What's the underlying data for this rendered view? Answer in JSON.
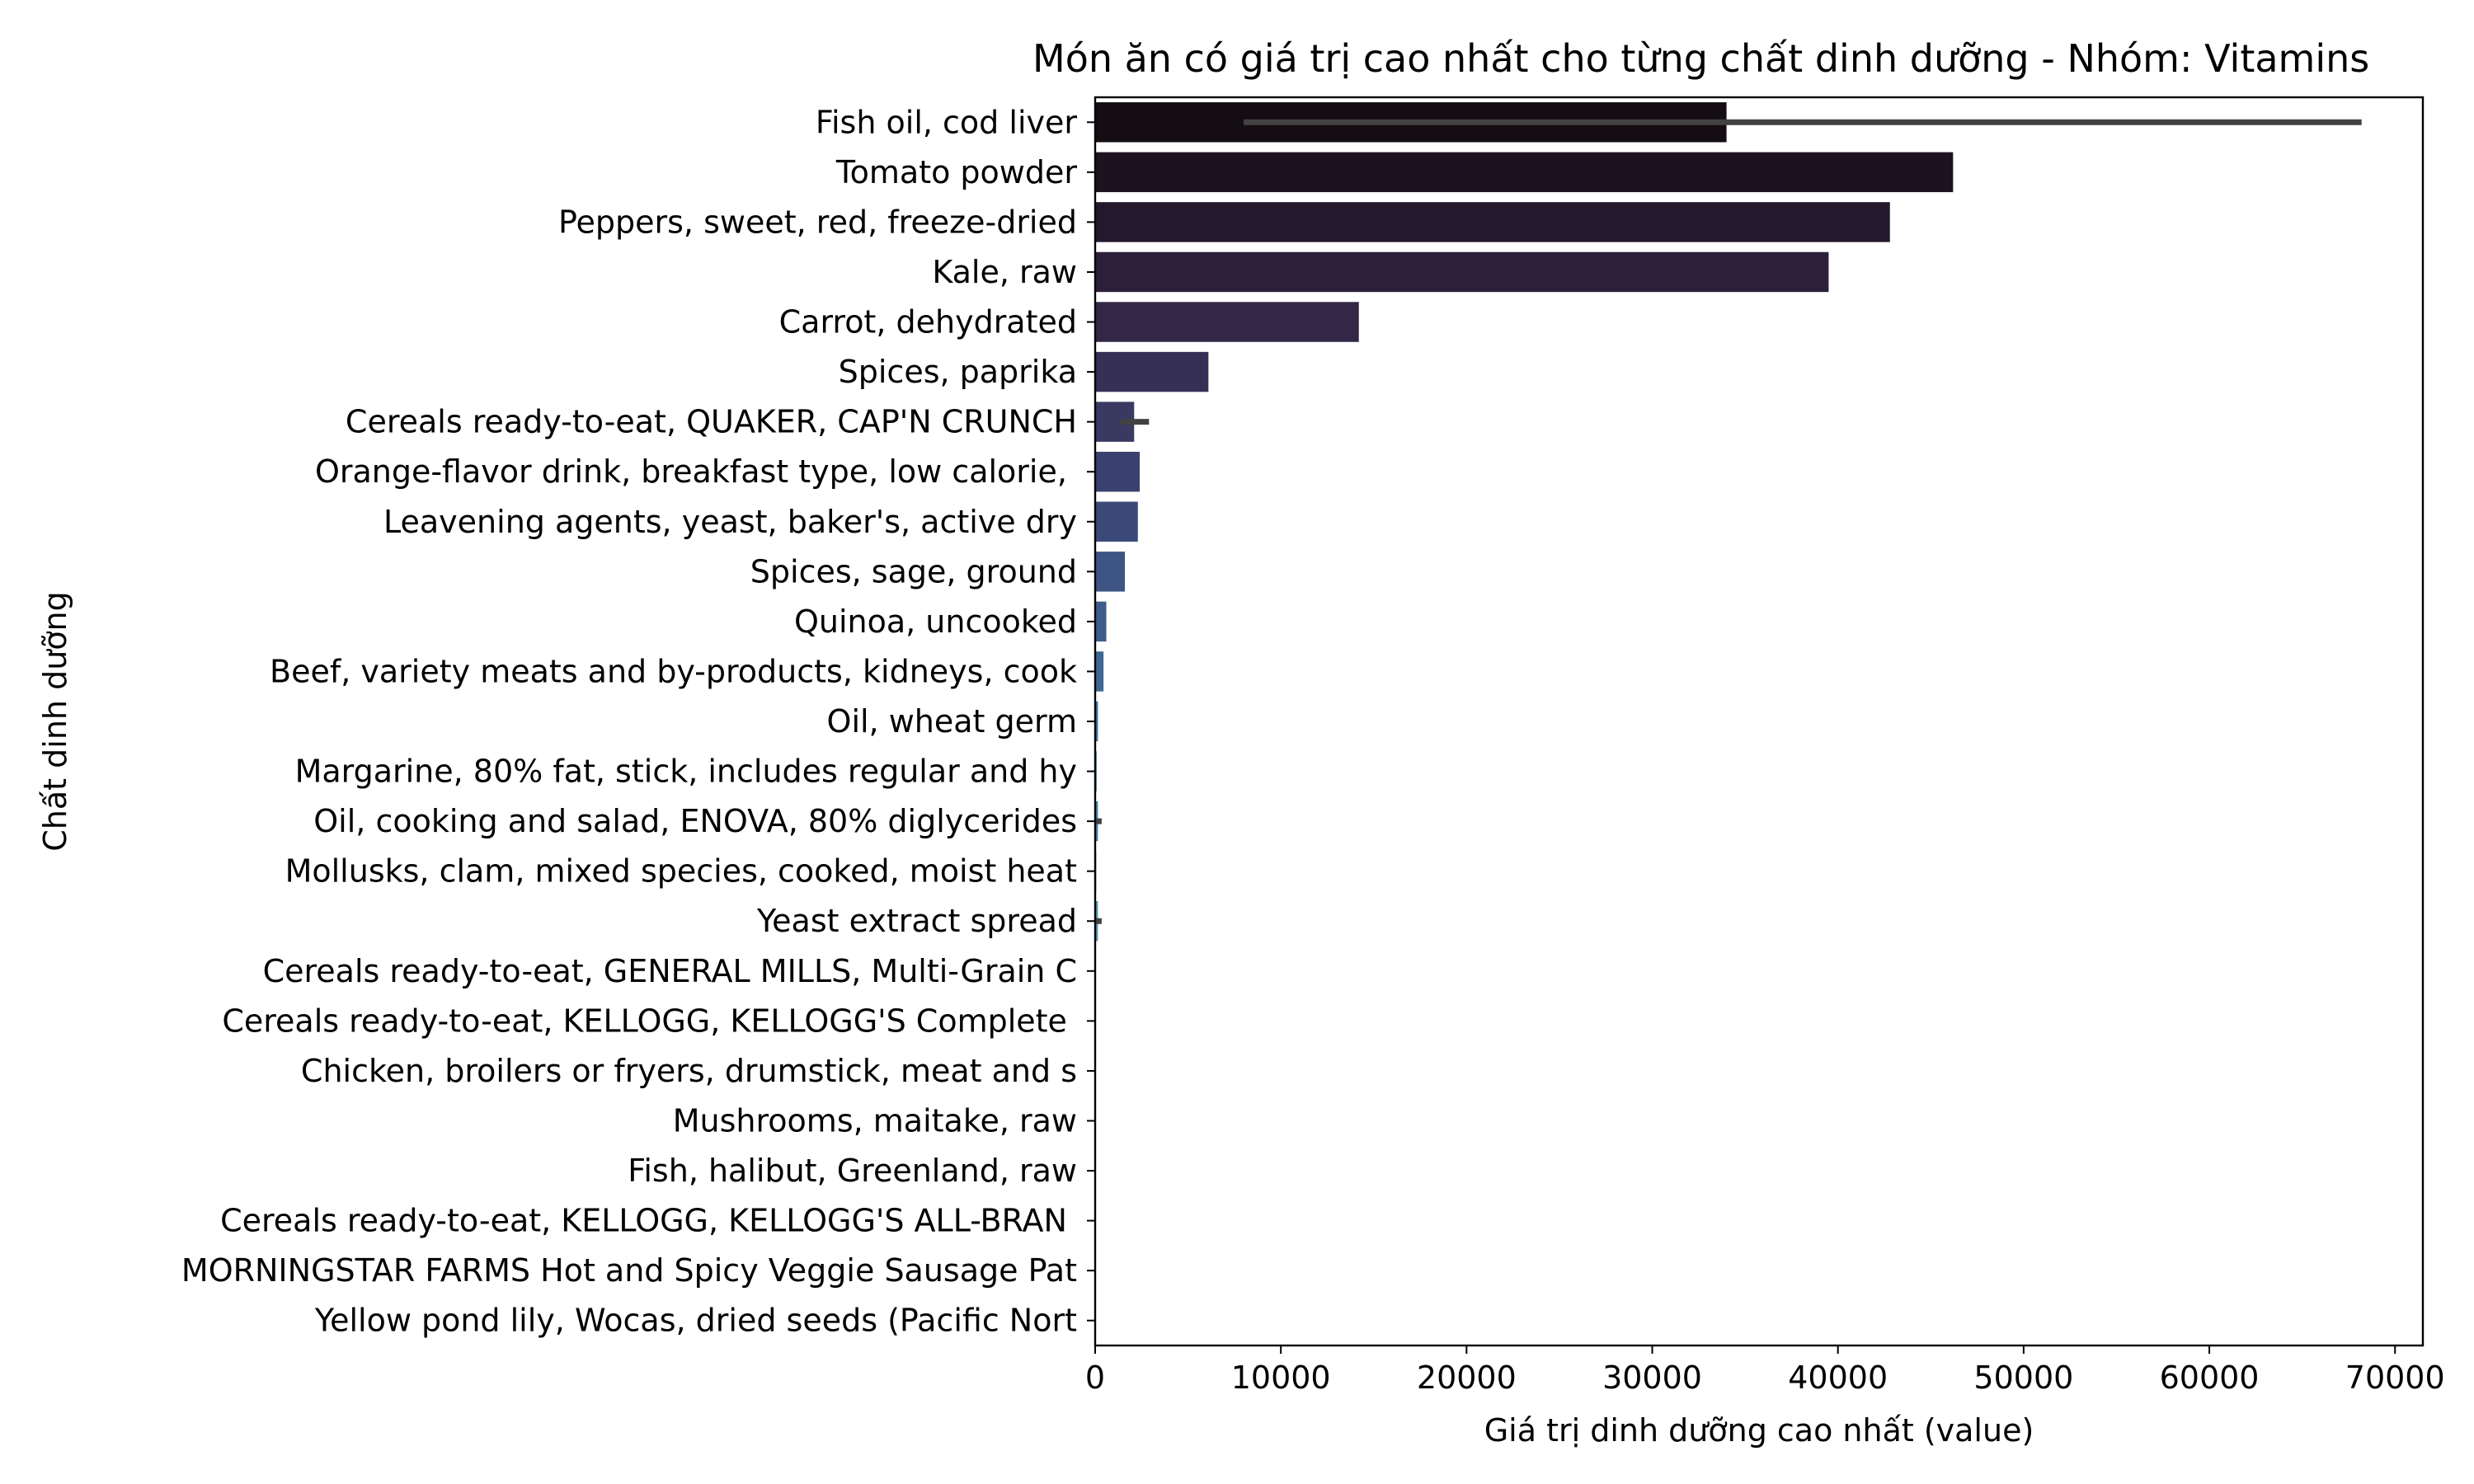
{
  "chart_data": {
    "type": "bar",
    "orientation": "horizontal",
    "title": "Món ăn có giá trị cao nhất cho từng chất dinh dưỡng - Nhóm: Vitamins",
    "xlabel": "Giá trị dinh dưỡng cao nhất (value)",
    "ylabel": "Chất dinh dưỡng",
    "xlim": [
      0,
      71500
    ],
    "xticks": [
      0,
      10000,
      20000,
      30000,
      40000,
      50000,
      60000,
      70000
    ],
    "xtick_labels": [
      "0",
      "10000",
      "20000",
      "30000",
      "40000",
      "50000",
      "60000",
      "70000"
    ],
    "grid": false,
    "legend": "none",
    "categories": [
      "Fish oil, cod liver",
      "Tomato powder",
      "Peppers, sweet, red, freeze-dried",
      "Kale, raw",
      "Carrot, dehydrated",
      "Spices, paprika",
      "Cereals ready-to-eat, QUAKER, CAP'N CRUNCH",
      "Orange-flavor drink, breakfast type, low calorie, ",
      "Leavening agents, yeast, baker's, active dry",
      "Spices, sage, ground",
      "Quinoa, uncooked",
      "Beef, variety meats and by-products, kidneys, cook",
      "Oil, wheat germ",
      "Margarine, 80% fat, stick, includes regular and hy",
      "Oil, cooking and salad, ENOVA, 80% diglycerides",
      "Mollusks, clam, mixed species, cooked, moist heat",
      "Yeast extract spread",
      "Cereals ready-to-eat, GENERAL MILLS, Multi-Grain C",
      "Cereals ready-to-eat, KELLOGG, KELLOGG'S Complete ",
      "Chicken, broilers or fryers, drumstick, meat and s",
      "Mushrooms, maitake, raw",
      "Fish, halibut, Greenland, raw",
      "Cereals ready-to-eat, KELLOGG, KELLOGG'S ALL-BRAN ",
      "MORNINGSTAR FARMS Hot and Spicy Veggie Sausage Pat",
      "Yellow pond lily, Wocas, dried seeds (Pacific Nort"
    ],
    "values": [
      34000,
      46200,
      42800,
      39500,
      14200,
      6100,
      2100,
      2400,
      2300,
      1600,
      600,
      450,
      150,
      80,
      150,
      60,
      150,
      40,
      40,
      30,
      30,
      30,
      25,
      20,
      15
    ],
    "error_bars": [
      [
        8000,
        68200
      ],
      null,
      null,
      null,
      null,
      null,
      [
        1300,
        2900
      ],
      null,
      null,
      null,
      null,
      null,
      null,
      null,
      [
        50,
        350
      ],
      null,
      [
        50,
        350
      ],
      null,
      null,
      null,
      null,
      null,
      null,
      null,
      null
    ],
    "colors": [
      "#140d13",
      "#1d1220",
      "#24182c",
      "#2d1f3a",
      "#332747",
      "#373055",
      "#393962",
      "#3b416e",
      "#3c4a7a",
      "#3d5484",
      "#3e5d8c",
      "#3f6793",
      "#40709a",
      "#427aa1",
      "#4683a6",
      "#4b8daa",
      "#5296ae",
      "#5a9fb2",
      "#62a9b6",
      "#6bb2ba",
      "#75bbbe",
      "#80c3c3",
      "#8ccbc8",
      "#9ad3ce",
      "#a9dad5"
    ]
  }
}
